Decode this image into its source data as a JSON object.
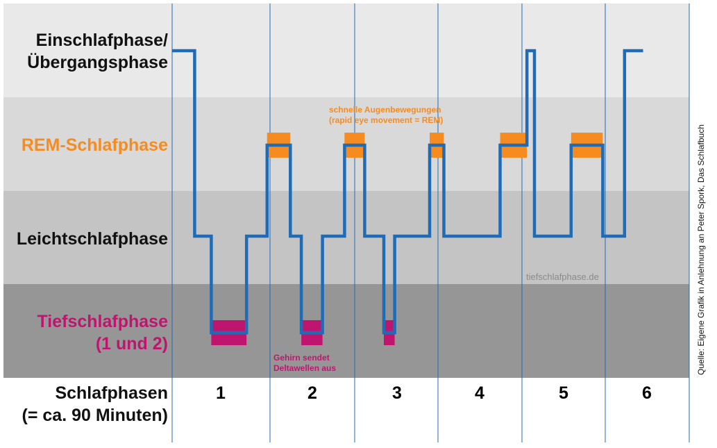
{
  "chart_data": {
    "type": "hypnogram",
    "stages": [
      {
        "key": "wake",
        "lines": [
          "Einschlafphase/",
          "Übergangsphase"
        ],
        "color": "#111111",
        "band": "#e9e9e9"
      },
      {
        "key": "rem",
        "lines": [
          "REM-Schlafphase"
        ],
        "color": "#f68b1f",
        "band": "#d9d9d9"
      },
      {
        "key": "light",
        "lines": [
          "Leichtschlafphase"
        ],
        "color": "#111111",
        "band": "#c4c4c4"
      },
      {
        "key": "deep",
        "lines": [
          "Tiefschlafphase",
          "(1 und 2)"
        ],
        "color": "#c0156e",
        "band": "#969696"
      }
    ],
    "x_axis_label_lines": [
      "Schlafphasen",
      "(= ca. 90 Minuten)"
    ],
    "cycles": [
      "1",
      "2",
      "3",
      "4",
      "5",
      "6"
    ],
    "line_color": "#1f6bb5",
    "rem_color": "#f68b1f",
    "deep_color": "#c0156e",
    "path": [
      [
        "wake",
        0.0
      ],
      [
        "wake",
        0.23
      ],
      [
        "light",
        0.23
      ],
      [
        "light",
        0.4
      ],
      [
        "deep",
        0.4
      ],
      [
        "deep",
        0.76
      ],
      [
        "light",
        0.76
      ],
      [
        "light",
        0.97
      ],
      [
        "rem",
        0.97
      ],
      [
        "rem",
        1.24
      ],
      [
        "light",
        1.24
      ],
      [
        "light",
        1.37
      ],
      [
        "deep",
        1.37
      ],
      [
        "deep",
        1.62
      ],
      [
        "light",
        1.62
      ],
      [
        "light",
        1.88
      ],
      [
        "rem",
        1.88
      ],
      [
        "rem",
        2.12
      ],
      [
        "light",
        2.12
      ],
      [
        "light",
        2.35
      ],
      [
        "deep",
        2.35
      ],
      [
        "deep",
        2.48
      ],
      [
        "light",
        2.48
      ],
      [
        "light",
        2.9
      ],
      [
        "rem",
        2.9
      ],
      [
        "rem",
        3.07
      ],
      [
        "light",
        3.07
      ],
      [
        "light",
        3.74
      ],
      [
        "rem",
        3.74
      ],
      [
        "rem",
        4.06
      ],
      [
        "wake",
        4.06
      ],
      [
        "wake",
        4.15
      ],
      [
        "light",
        4.15
      ],
      [
        "light",
        4.59
      ],
      [
        "rem",
        4.59
      ],
      [
        "rem",
        4.97
      ],
      [
        "light",
        4.97
      ],
      [
        "light",
        5.23
      ],
      [
        "wake",
        5.23
      ],
      [
        "wake",
        5.45
      ]
    ],
    "rem_blocks": [
      [
        0.97,
        1.24
      ],
      [
        1.88,
        2.12
      ],
      [
        2.9,
        3.07
      ],
      [
        3.74,
        4.06
      ],
      [
        4.59,
        4.97
      ]
    ],
    "deep_blocks": [
      [
        0.4,
        0.76
      ],
      [
        1.37,
        1.62
      ],
      [
        2.35,
        2.48
      ]
    ],
    "annotations": [
      {
        "lines": [
          "schnelle Augenbewegungen",
          "(rapid eye movement = REM)"
        ],
        "color": "#f68b1f"
      },
      {
        "lines": [
          "Gehirn sendet",
          "Deltawellen aus"
        ],
        "color": "#c0156e"
      }
    ],
    "watermark": "tiefschlafphase.de",
    "source": "Quelle: Eigene Grafik in Anlehnung an Peter Spork, Das Schlafbuch"
  }
}
